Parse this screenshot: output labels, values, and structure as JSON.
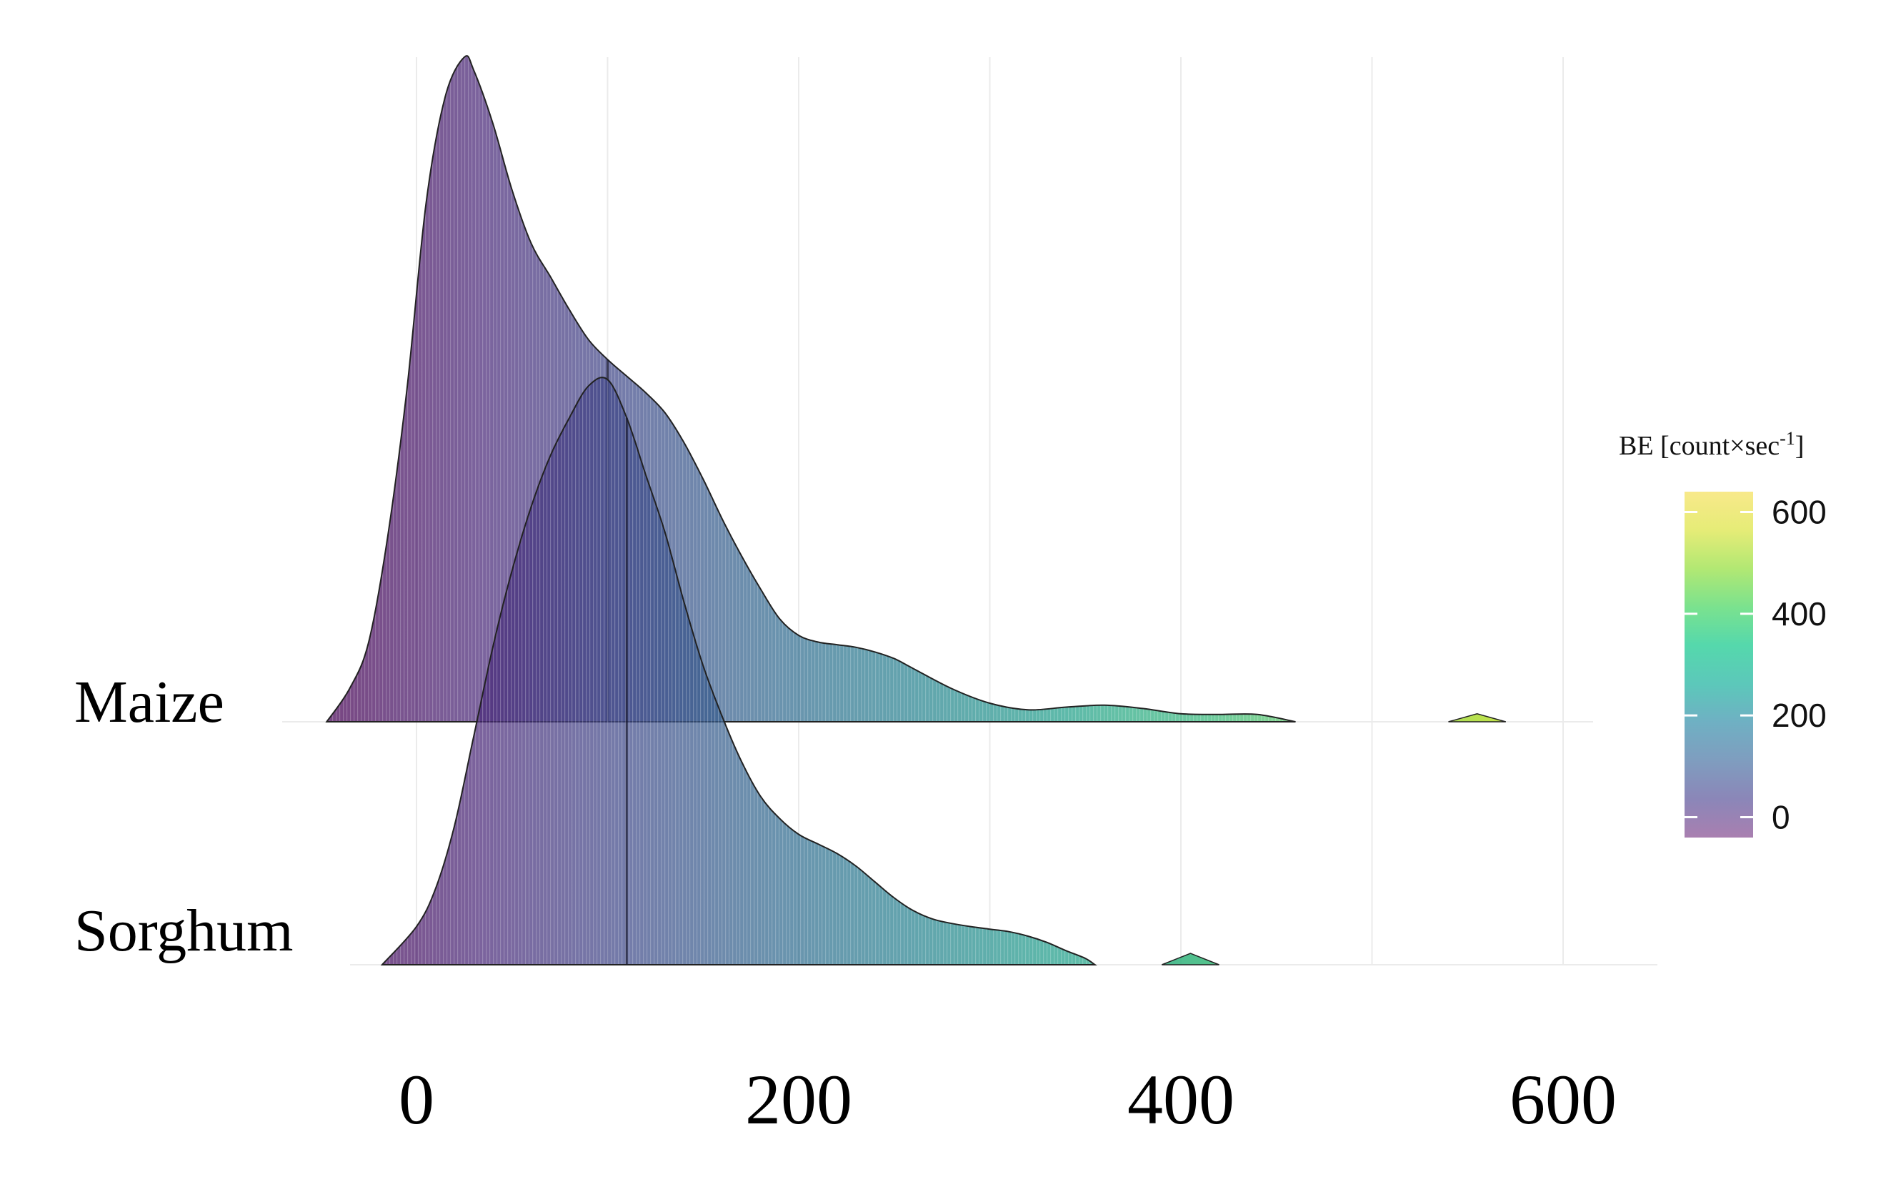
{
  "chart_data": {
    "type": "area",
    "subtype": "ridgeline-density",
    "xlim": [
      -90,
      650
    ],
    "xticks": [
      0,
      200,
      400,
      600
    ],
    "x_grid": [
      0,
      100,
      200,
      300,
      400,
      500,
      600
    ],
    "grid": true,
    "fill_gradient": "viridis",
    "series": [
      {
        "name": "Maize",
        "x": [
          -47,
          -35,
          -25,
          -15,
          -5,
          5,
          15,
          25,
          30,
          40,
          50,
          60,
          70,
          80,
          90,
          100,
          110,
          120,
          130,
          140,
          150,
          160,
          170,
          180,
          190,
          200,
          210,
          220,
          230,
          240,
          250,
          260,
          280,
          300,
          320,
          340,
          360,
          380,
          400,
          420,
          440,
          460
        ],
        "density": [
          0.0,
          0.05,
          0.12,
          0.28,
          0.5,
          0.78,
          0.94,
          1.0,
          0.98,
          0.9,
          0.8,
          0.72,
          0.67,
          0.62,
          0.575,
          0.545,
          0.52,
          0.495,
          0.465,
          0.42,
          0.365,
          0.305,
          0.25,
          0.2,
          0.155,
          0.13,
          0.12,
          0.116,
          0.112,
          0.105,
          0.095,
          0.08,
          0.05,
          0.028,
          0.018,
          0.022,
          0.025,
          0.02,
          0.012,
          0.011,
          0.011,
          0.0
        ],
        "extra_segment": {
          "x": [
            540,
            555,
            570
          ],
          "density": [
            0.0,
            0.012,
            0.0
          ]
        },
        "median": 100
      },
      {
        "name": "Sorghum",
        "x": [
          -18,
          0,
          10,
          20,
          30,
          40,
          50,
          60,
          70,
          80,
          90,
          100,
          110,
          120,
          130,
          140,
          150,
          160,
          170,
          180,
          190,
          200,
          210,
          220,
          230,
          240,
          250,
          260,
          270,
          280,
          290,
          300,
          310,
          320,
          330,
          340,
          350,
          355
        ],
        "density": [
          0.0,
          0.06,
          0.12,
          0.22,
          0.36,
          0.5,
          0.62,
          0.72,
          0.8,
          0.86,
          0.91,
          0.92,
          0.86,
          0.77,
          0.68,
          0.57,
          0.47,
          0.39,
          0.32,
          0.265,
          0.23,
          0.205,
          0.19,
          0.175,
          0.155,
          0.13,
          0.105,
          0.085,
          0.072,
          0.065,
          0.06,
          0.056,
          0.052,
          0.045,
          0.035,
          0.022,
          0.01,
          0.0
        ],
        "extra_segment": {
          "x": [
            390,
            405,
            420
          ],
          "density": [
            0.0,
            0.018,
            0.0
          ]
        },
        "median": 110
      }
    ],
    "legend": {
      "title": "BE [count×sec",
      "title_superscript": "-1",
      "title_end": "]",
      "ticks": [
        "0",
        "200",
        "400",
        "600"
      ],
      "tick_values": [
        0,
        200,
        400,
        600
      ],
      "range": [
        -40,
        640
      ],
      "placement": "right"
    },
    "colors": {
      "grid": "#ebebeb",
      "outline": "#222222",
      "viridis": [
        "#440154",
        "#482878",
        "#3e4a89",
        "#31688e",
        "#26828e",
        "#1f9e89",
        "#35b779",
        "#6ece58",
        "#b5de2b",
        "#fde725"
      ]
    }
  }
}
